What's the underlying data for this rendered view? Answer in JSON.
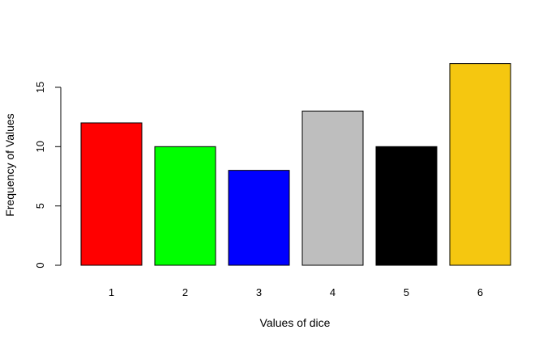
{
  "chart_data": {
    "type": "bar",
    "categories": [
      "1",
      "2",
      "3",
      "4",
      "5",
      "6"
    ],
    "values": [
      12,
      10,
      8,
      13,
      10,
      17
    ],
    "bar_colors": [
      "#ff0000",
      "#00ff00",
      "#0000ff",
      "#bebebe",
      "#000000",
      "#f5c710"
    ],
    "title": "",
    "xlabel": "Values of dice",
    "ylabel": "Frequency of Values",
    "ylim": [
      0,
      17
    ],
    "yticks": [
      0,
      5,
      10,
      15
    ],
    "grid": false,
    "legend": "none"
  }
}
